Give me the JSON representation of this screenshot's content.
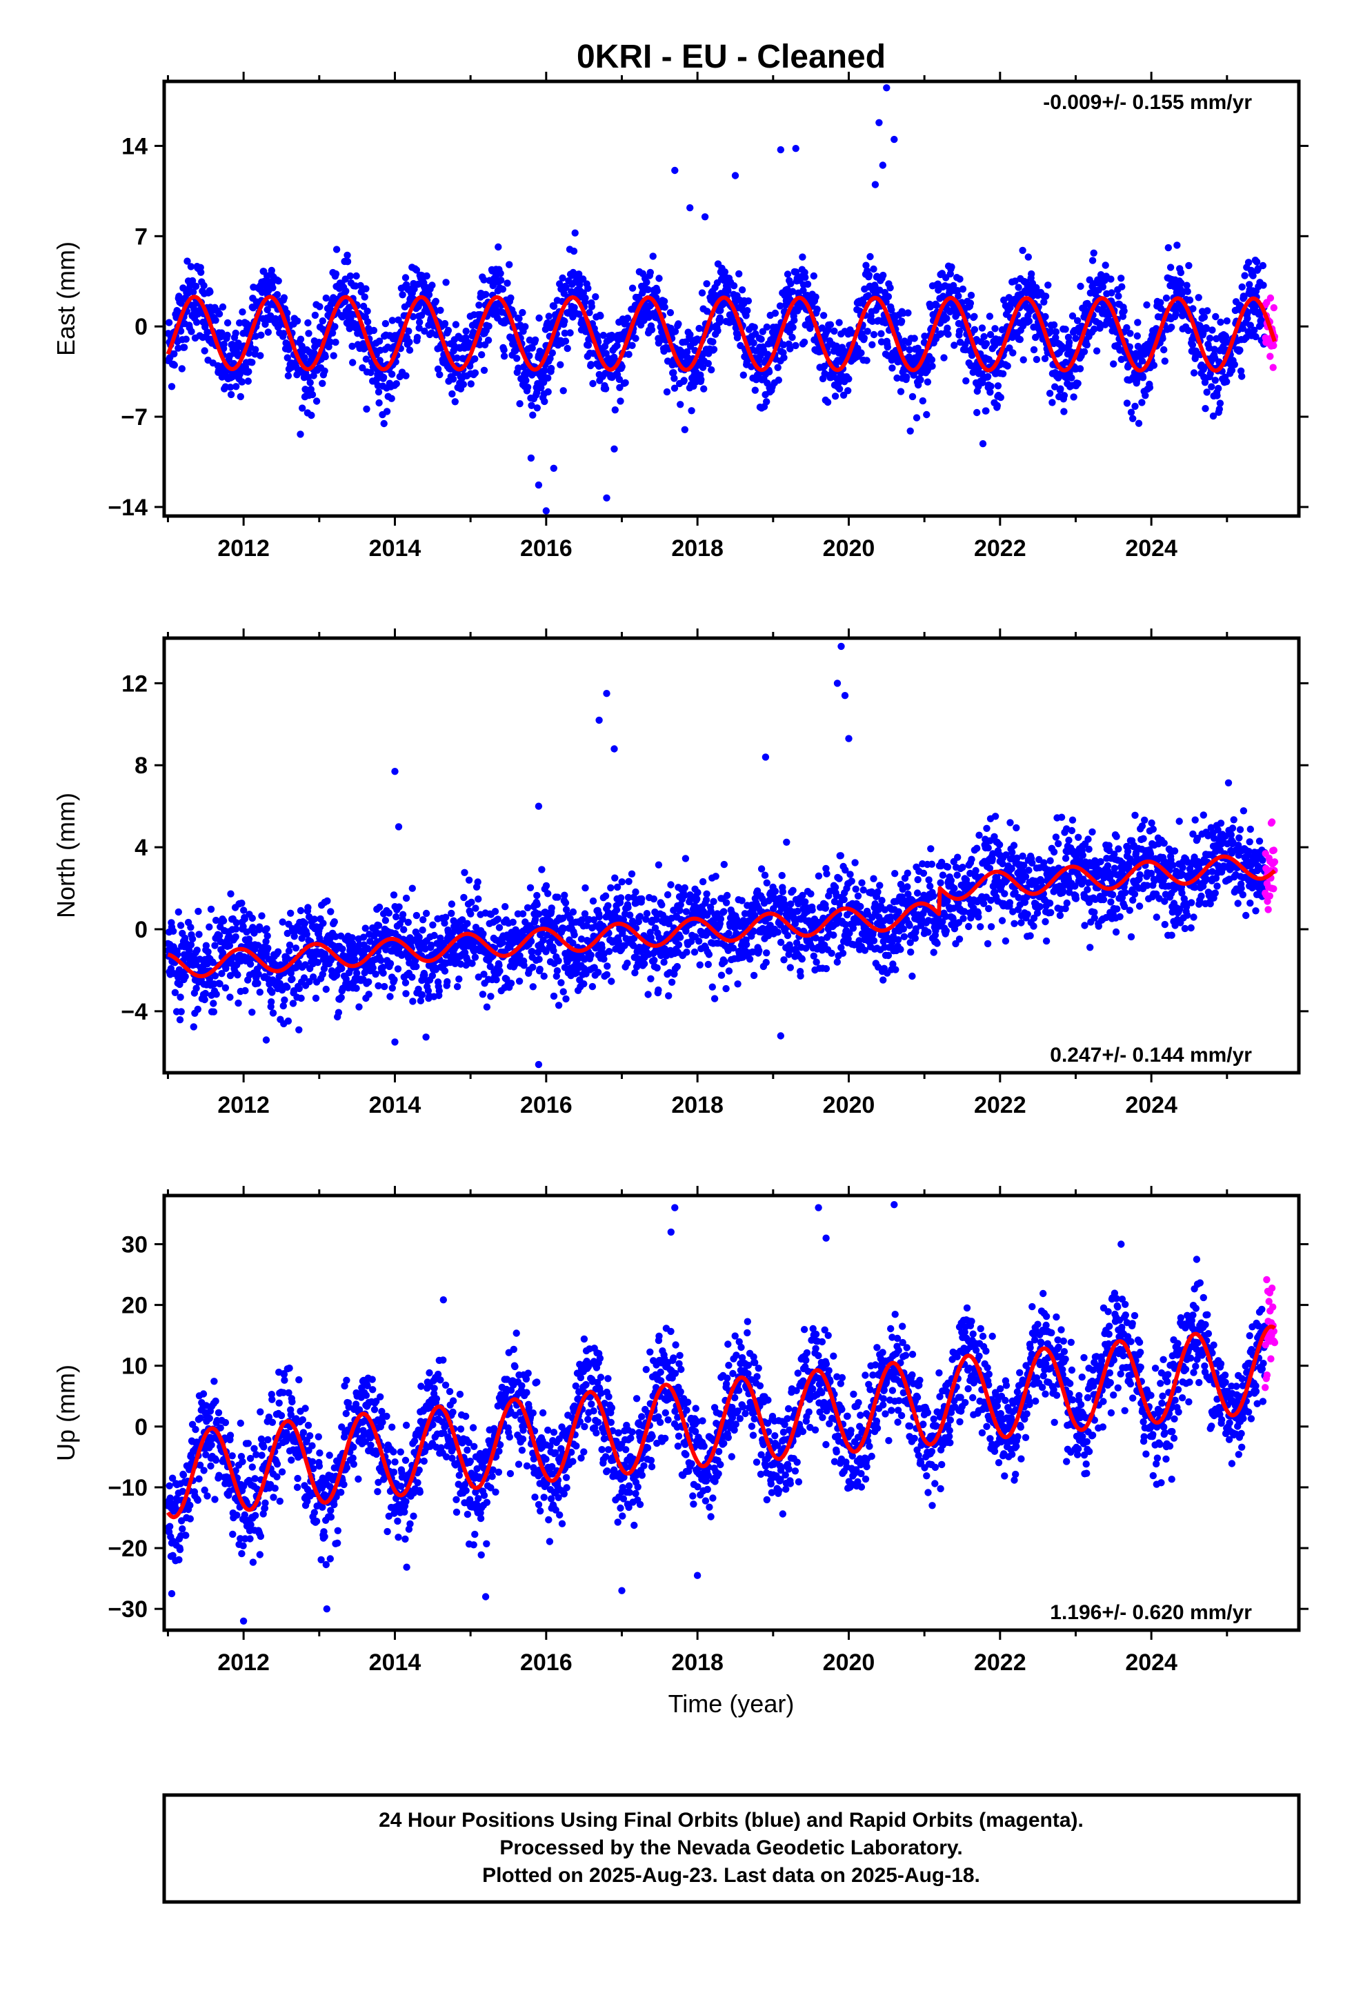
{
  "figure": {
    "title": "0KRI  - EU - Cleaned",
    "xlabel": "Time (year)",
    "footer": [
      "24 Hour Positions Using Final Orbits (blue) and Rapid Orbits (magenta).",
      "Processed by the Nevada Geodetic Laboratory.",
      "Plotted on 2025-Aug-23. Last data on 2025-Aug-18."
    ],
    "colors": {
      "final_orbits": "#0000ff",
      "rapid_orbits": "#ff00ff",
      "model_fit": "#ff0000",
      "frame": "#000000"
    }
  },
  "chart_data": [
    {
      "type": "scatter",
      "ylabel": "East (mm)",
      "rate_label": "-0.009+/- 0.155 mm/yr",
      "rate_position": "top-right",
      "xlim": [
        2010.95,
        2025.95
      ],
      "ylim": [
        -14.7,
        19
      ],
      "xticks": [
        2012,
        2014,
        2016,
        2018,
        2020,
        2022,
        2024
      ],
      "yticks": [
        -14,
        -7,
        0,
        7,
        14
      ],
      "data_span": [
        2011.0,
        2025.63
      ],
      "rapid_start": 2025.5,
      "model": {
        "trend_at_start": -0.5,
        "rate": -0.009,
        "annual_amp": 2.8,
        "annual_peak": 0.35,
        "semiannual_amp": 0.0
      },
      "scatter_sd": 1.6,
      "points_per_year": 200,
      "outliers": [
        {
          "x": 2015.9,
          "y": -12.3
        },
        {
          "x": 2016.0,
          "y": -14.3
        },
        {
          "x": 2015.8,
          "y": -10.2
        },
        {
          "x": 2016.1,
          "y": -11.0
        },
        {
          "x": 2016.8,
          "y": -13.3
        },
        {
          "x": 2016.9,
          "y": -9.5
        },
        {
          "x": 2017.7,
          "y": 12.1
        },
        {
          "x": 2018.5,
          "y": 11.7
        },
        {
          "x": 2019.1,
          "y": 13.7
        },
        {
          "x": 2019.3,
          "y": 13.8
        },
        {
          "x": 2020.4,
          "y": 15.8
        },
        {
          "x": 2020.5,
          "y": 18.5
        },
        {
          "x": 2020.6,
          "y": 14.5
        },
        {
          "x": 2020.45,
          "y": 12.5
        },
        {
          "x": 2020.35,
          "y": 11.0
        },
        {
          "x": 2017.9,
          "y": 9.2
        },
        {
          "x": 2018.1,
          "y": 8.5
        }
      ]
    },
    {
      "type": "scatter",
      "ylabel": "North (mm)",
      "rate_label": "0.247+/- 0.144 mm/yr",
      "rate_position": "bottom-right",
      "xlim": [
        2010.95,
        2025.95
      ],
      "ylim": [
        -7,
        14.2
      ],
      "xticks": [
        2012,
        2014,
        2016,
        2018,
        2020,
        2022,
        2024
      ],
      "yticks": [
        -4,
        0,
        4,
        8,
        12
      ],
      "data_span": [
        2011.0,
        2025.63
      ],
      "rapid_start": 2025.5,
      "step": {
        "x": 2021.2,
        "size": 1.3
      },
      "model": {
        "trend_at_start": -1.8,
        "rate": 0.247,
        "annual_amp": 0.6,
        "annual_peak": 0.95,
        "semiannual_amp": 0.0
      },
      "scatter_sd": 1.1,
      "points_per_year": 200,
      "outliers": [
        {
          "x": 2014.0,
          "y": 7.7
        },
        {
          "x": 2014.05,
          "y": 5.0
        },
        {
          "x": 2015.9,
          "y": 6.0
        },
        {
          "x": 2016.8,
          "y": 11.5
        },
        {
          "x": 2016.7,
          "y": 10.2
        },
        {
          "x": 2016.9,
          "y": 8.8
        },
        {
          "x": 2018.9,
          "y": 8.4
        },
        {
          "x": 2019.9,
          "y": 13.8
        },
        {
          "x": 2019.85,
          "y": 12.0
        },
        {
          "x": 2019.95,
          "y": 11.4
        },
        {
          "x": 2020.0,
          "y": 9.3
        },
        {
          "x": 2015.9,
          "y": -6.6
        },
        {
          "x": 2012.3,
          "y": -5.4
        },
        {
          "x": 2019.1,
          "y": -5.2
        },
        {
          "x": 2014.0,
          "y": -5.5
        }
      ]
    },
    {
      "type": "scatter",
      "ylabel": "Up (mm)",
      "rate_label": "1.196+/- 0.620 mm/yr",
      "rate_position": "bottom-right",
      "xlim": [
        2010.95,
        2025.95
      ],
      "ylim": [
        -33.5,
        38
      ],
      "xticks": [
        2012,
        2014,
        2016,
        2018,
        2020,
        2022,
        2024
      ],
      "yticks": [
        -30,
        -20,
        -10,
        0,
        10,
        20,
        30
      ],
      "data_span": [
        2011.0,
        2025.63
      ],
      "rapid_start": 2025.5,
      "model": {
        "trend_at_start": -8.0,
        "rate": 1.196,
        "annual_amp": 7.0,
        "annual_peak": 0.58,
        "semiannual_amp": 0.0
      },
      "scatter_sd": 4.2,
      "points_per_year": 200,
      "outliers": [
        {
          "x": 2012.0,
          "y": -32.0
        },
        {
          "x": 2013.1,
          "y": -30.0
        },
        {
          "x": 2017.7,
          "y": 36.0
        },
        {
          "x": 2017.65,
          "y": 32.0
        },
        {
          "x": 2019.6,
          "y": 36.0
        },
        {
          "x": 2020.6,
          "y": 36.5
        },
        {
          "x": 2019.7,
          "y": 31.0
        },
        {
          "x": 2015.2,
          "y": -28.0
        },
        {
          "x": 2017.0,
          "y": -27.0
        },
        {
          "x": 2011.05,
          "y": -27.5
        },
        {
          "x": 2023.6,
          "y": 30.0
        },
        {
          "x": 2024.6,
          "y": 27.5
        },
        {
          "x": 2018.0,
          "y": -24.5
        }
      ]
    }
  ]
}
